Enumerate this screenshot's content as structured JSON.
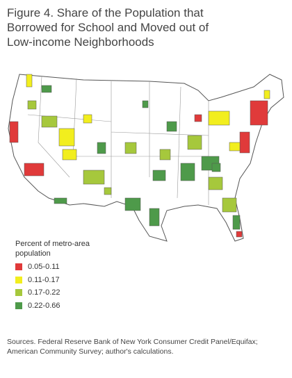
{
  "title": "Figure 4. Share of the Population that Borrowed for School and Moved out of Low-income Neighborhoods",
  "legend": {
    "title": "Percent of metro-area population",
    "items": [
      {
        "label": "0.05-0.11",
        "color": "#e03a3a"
      },
      {
        "label": "0.11-0.17",
        "color": "#f2ee1e"
      },
      {
        "label": "0.17-0.22",
        "color": "#a6c83c"
      },
      {
        "label": "0.22-0.66",
        "color": "#4e9a4a"
      }
    ]
  },
  "source": "Sources. Federal Reserve Bank of New York Consumer Credit Panel/Equifax; American Community Survey; author's calculations."
}
